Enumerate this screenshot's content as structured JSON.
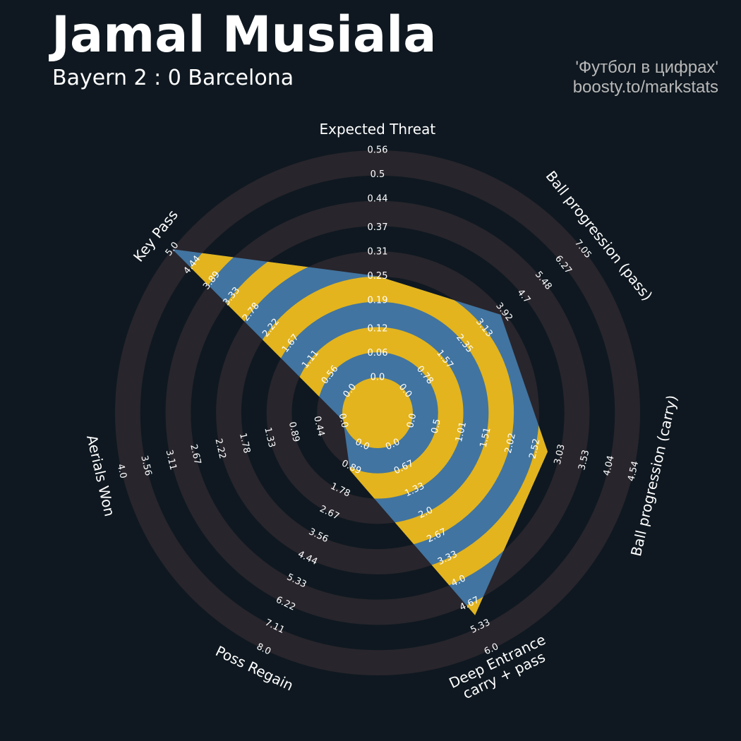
{
  "chart_data": {
    "type": "radar",
    "title": "Jamal Musiala",
    "subtitle": "Bayern 2 : 0 Barcelona",
    "credits": [
      "'Футбол в цифрах'",
      "boosty.to/markstats"
    ],
    "params": [
      "Expected Threat",
      "Ball progression (pass)",
      "Ball progression (carry)",
      "Deep Entrance\ncarry + pass",
      "Poss Regain",
      "Aerials Won",
      "Key Pass"
    ],
    "ranges": [
      [
        0,
        0.56
      ],
      [
        0,
        7.05
      ],
      [
        0,
        4.54
      ],
      [
        0,
        6.0
      ],
      [
        0,
        8.0
      ],
      [
        0,
        4.0
      ],
      [
        0,
        5.0
      ]
    ],
    "ticks": [
      [
        {
          "value": 0,
          "label": "0.0"
        },
        0.06,
        0.12,
        0.19,
        0.25,
        0.31,
        0.37,
        0.44,
        0.5,
        0.56
      ],
      [
        {
          "value": 0,
          "label": "0.0"
        },
        0.78,
        1.57,
        2.35,
        3.13,
        3.92,
        4.7,
        5.48,
        6.27,
        7.05
      ],
      [
        {
          "value": 0,
          "label": "0.0"
        },
        0.5,
        1.01,
        1.51,
        2.02,
        2.52,
        3.03,
        3.53,
        4.04,
        4.54
      ],
      [
        {
          "value": 0,
          "label": "0.0"
        },
        0.67,
        1.33,
        {
          "value": 2,
          "label": "2.0"
        },
        2.67,
        3.33,
        {
          "value": 4,
          "label": "4.0"
        },
        4.67,
        5.33,
        {
          "value": 6,
          "label": "6.0"
        }
      ],
      [
        {
          "value": 0,
          "label": "0.0"
        },
        0.89,
        1.78,
        2.67,
        3.56,
        4.44,
        5.33,
        6.22,
        7.11,
        {
          "value": 8,
          "label": "8.0"
        }
      ],
      [
        {
          "value": 0,
          "label": "0.0"
        },
        0.44,
        0.89,
        1.33,
        1.78,
        2.22,
        2.67,
        3.11,
        3.56,
        {
          "value": 4,
          "label": "4.0"
        }
      ],
      [
        {
          "value": 0,
          "label": "0.0"
        },
        0.56,
        1.11,
        1.67,
        2.22,
        2.78,
        3.33,
        3.89,
        4.44,
        {
          "value": 5,
          "label": "5.0"
        }
      ]
    ],
    "values": [
      0.25,
      3.79,
      2.78,
      5.0,
      1.0,
      0.0,
      5.0
    ],
    "colors": {
      "background": "#0f1820",
      "rings": "#28252c",
      "polygon": "#4174a0",
      "polygon_rings": "#e3b41e"
    }
  }
}
